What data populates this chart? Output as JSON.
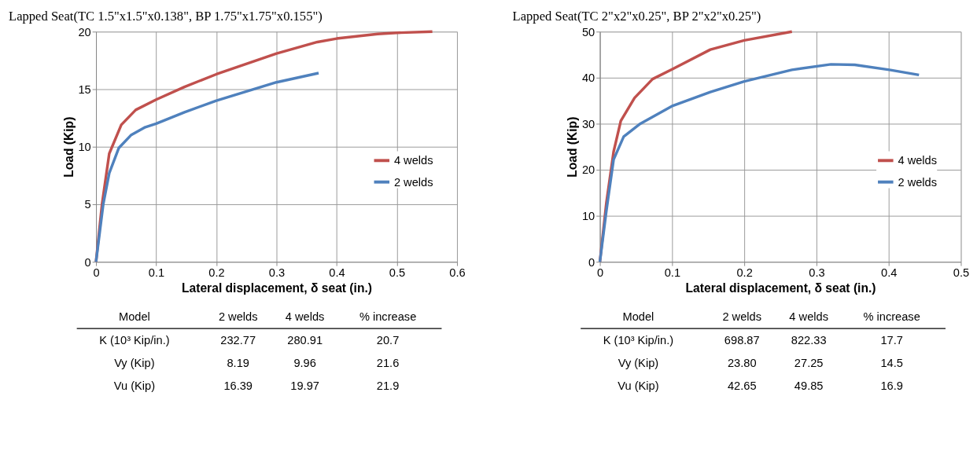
{
  "chart_data": [
    {
      "type": "line",
      "title": "Lapped Seat(TC 1.5\"x1.5\"x0.138\", BP 1.75\"x1.75\"x0.155\")",
      "xlabel": "Lateral displacement, δ seat (in.)",
      "ylabel": "Load (Kip)",
      "xlim": [
        0,
        0.6
      ],
      "xticks": [
        0,
        0.1,
        0.2,
        0.3,
        0.4,
        0.5,
        0.6
      ],
      "ylim": [
        0,
        20
      ],
      "yticks": [
        0,
        5,
        10,
        15,
        20
      ],
      "grid": true,
      "legend": "right",
      "marker": "none",
      "line_style": "solid",
      "series": [
        {
          "name": "4 welds",
          "color": "#c0504d",
          "x": [
            0,
            0.01,
            0.022,
            0.042,
            0.066,
            0.1,
            0.147,
            0.2,
            0.3,
            0.368,
            0.4,
            0.468,
            0.5,
            0.559
          ],
          "values": [
            0,
            5,
            9.4,
            11.9,
            13.2,
            14.1,
            15.2,
            16.3,
            18.1,
            19.1,
            19.4,
            19.8,
            19.9,
            20
          ]
        },
        {
          "name": "2 welds",
          "color": "#4f81bd",
          "x": [
            0,
            0.012,
            0.022,
            0.038,
            0.058,
            0.082,
            0.1,
            0.147,
            0.2,
            0.3,
            0.37
          ],
          "values": [
            0,
            5,
            7.7,
            9.9,
            11,
            11.7,
            12,
            13,
            14,
            15.6,
            16.4
          ]
        }
      ],
      "annotations": [
        "Model",
        "2 welds",
        "4 welds",
        "% increase",
        "K (10³ Kip/in.)",
        "232.77",
        "280.91",
        "20.7",
        "Vy (Kip)",
        "8.19",
        "9.96",
        "21.6",
        "Vu (Kip)",
        "16.39",
        "19.97",
        "21.9"
      ]
    },
    {
      "type": "line",
      "title": "Lapped Seat(TC 2\"x2\"x0.25\", BP 2\"x2\"x0.25\")",
      "xlabel": "Lateral displacement, δ seat (in.)",
      "ylabel": "Load (Kip)",
      "xlim": [
        0,
        0.5
      ],
      "xticks": [
        0,
        0.1,
        0.2,
        0.3,
        0.4,
        0.5
      ],
      "ylim": [
        0,
        50
      ],
      "yticks": [
        0,
        10,
        20,
        30,
        40,
        50
      ],
      "grid": true,
      "legend": "right",
      "marker": "none",
      "line_style": "solid",
      "series": [
        {
          "name": "4 welds",
          "color": "#c0504d",
          "x": [
            0,
            0.009,
            0.019,
            0.029,
            0.048,
            0.073,
            0.101,
            0.153,
            0.2,
            0.266
          ],
          "values": [
            0,
            12.8,
            23.9,
            30.6,
            35.6,
            39.7,
            41.9,
            46.1,
            48.1,
            50
          ]
        },
        {
          "name": "2 welds",
          "color": "#4f81bd",
          "x": [
            0,
            0.009,
            0.019,
            0.033,
            0.056,
            0.101,
            0.153,
            0.2,
            0.266,
            0.32,
            0.353,
            0.401,
            0.442
          ],
          "values": [
            0,
            11.1,
            22.2,
            27.2,
            30,
            33.9,
            36.9,
            39.2,
            41.7,
            42.9,
            42.8,
            41.7,
            40.6
          ]
        }
      ],
      "annotations": [
        "Model",
        "2 welds",
        "4 welds",
        "% increase",
        "K (10³ Kip/in.)",
        "698.87",
        "822.33",
        "17.7",
        "Vy (Kip)",
        "23.80",
        "27.25",
        "14.5",
        "Vu (Kip)",
        "42.65",
        "49.85",
        "16.9"
      ]
    }
  ]
}
